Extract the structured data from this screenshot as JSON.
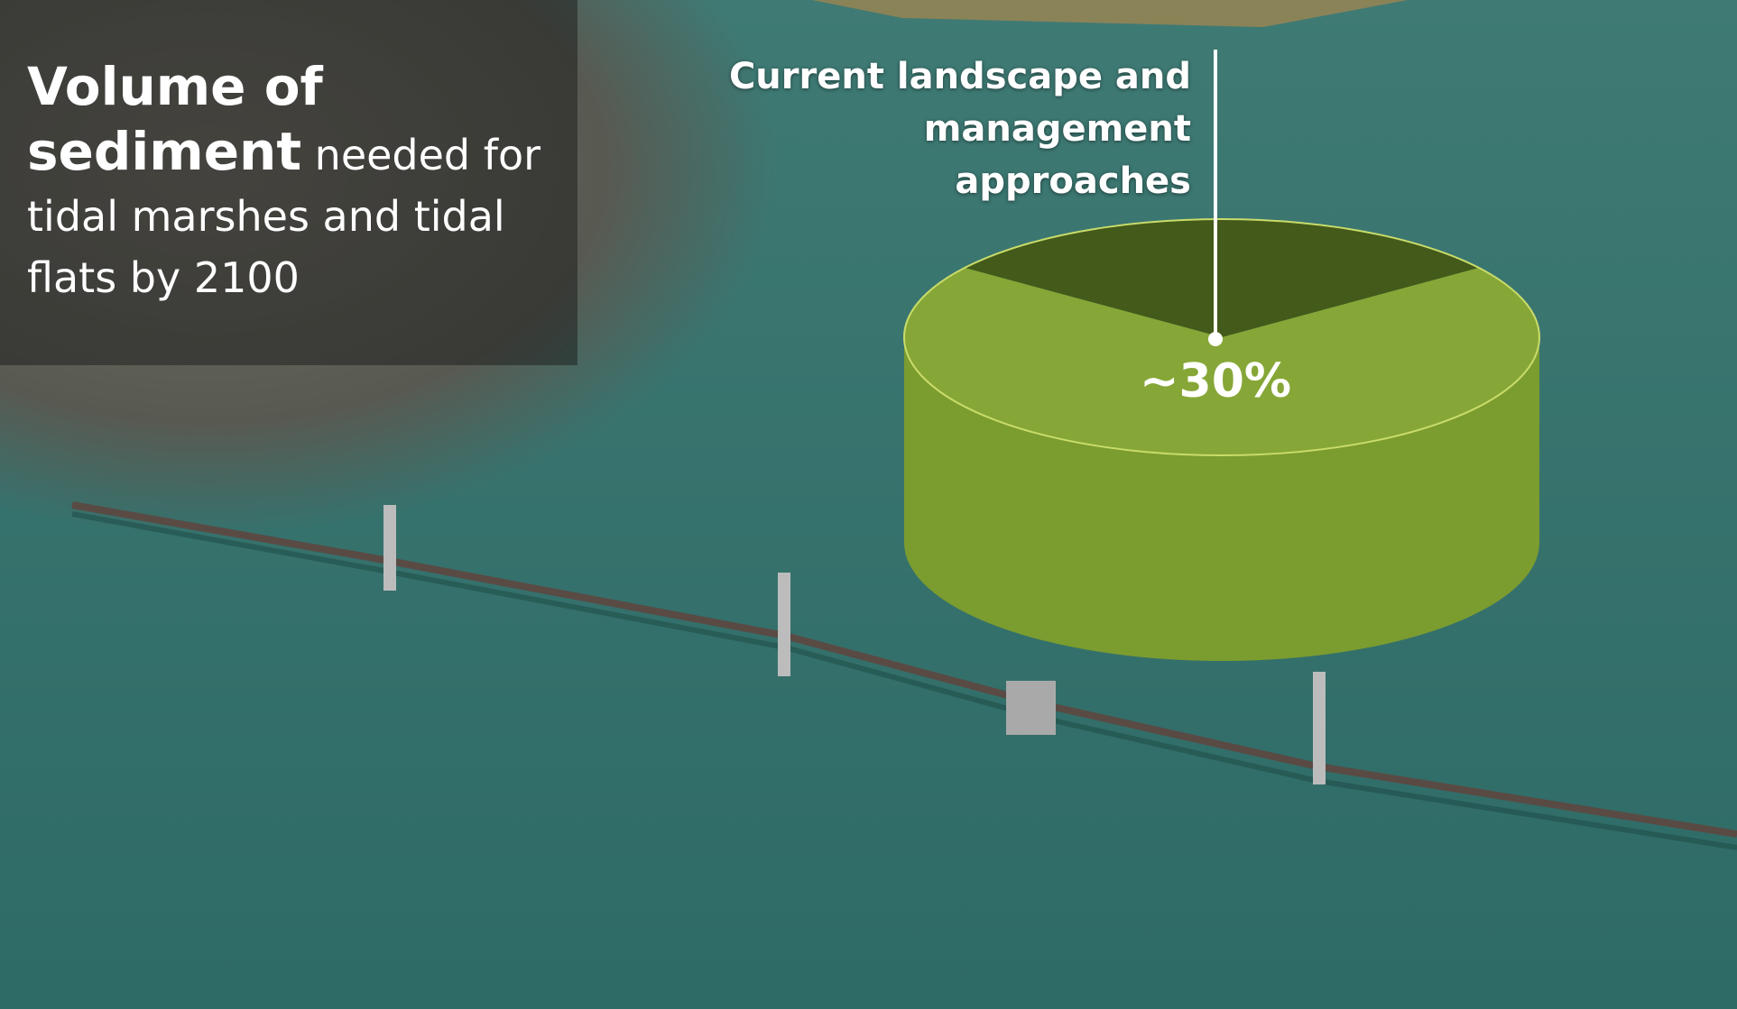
{
  "chart_data": {
    "type": "pie",
    "title": "Volume of sediment",
    "subtitle": "needed for tidal marshes and tidal flats by 2100",
    "categories": [
      "Current landscape and management approaches",
      null
    ],
    "values": [
      30,
      70
    ],
    "value_labels": [
      "~30%",
      null
    ],
    "colors": [
      "#435a1a",
      "#86a737"
    ]
  }
}
